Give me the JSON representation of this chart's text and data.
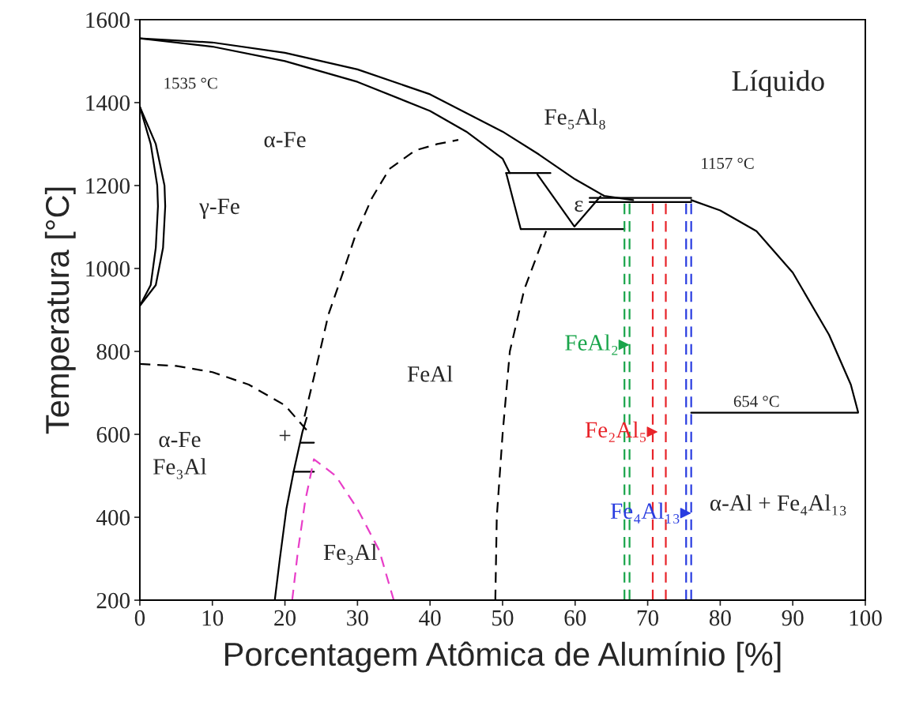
{
  "chart_data": {
    "type": "line",
    "xlabel": "Porcentagem Atômica de Alumínio [%]",
    "ylabel": "Temperatura [°C]",
    "xlim": [
      0,
      100
    ],
    "ylim": [
      200,
      1600
    ],
    "xticks": [
      0,
      10,
      20,
      30,
      40,
      50,
      60,
      70,
      80,
      90,
      100
    ],
    "yticks": [
      200,
      400,
      600,
      800,
      1000,
      1200,
      1400,
      1600
    ],
    "grid": false,
    "legend": "right",
    "marker": "none",
    "series": [
      {
        "color": "#000000",
        "line_style": "solid",
        "x": [
          0,
          10,
          20,
          30,
          40,
          50,
          55,
          60,
          64,
          68
        ],
        "values": [
          1555,
          1545,
          1520,
          1480,
          1420,
          1330,
          1275,
          1215,
          1175,
          1165
        ]
      },
      {
        "color": "#000000",
        "line_style": "solid",
        "x": [
          0,
          10,
          20,
          30,
          40,
          45,
          50,
          51
        ],
        "values": [
          1555,
          1535,
          1500,
          1450,
          1380,
          1330,
          1265,
          1230
        ]
      },
      {
        "color": "#000000",
        "line_style": "solid",
        "x": [
          50.5,
          56.6
        ],
        "values": [
          1230,
          1230
        ]
      },
      {
        "color": "#000000",
        "line_style": "solid",
        "x": [
          50.5,
          52.5
        ],
        "values": [
          1230,
          1095
        ]
      },
      {
        "color": "#000000",
        "line_style": "solid",
        "x": [
          52.5,
          66.8
        ],
        "values": [
          1095,
          1095
        ]
      },
      {
        "color": "#000000",
        "line_style": "solid",
        "x": [
          54.8,
          59.9,
          63.5
        ],
        "values": [
          1227,
          1101,
          1174
        ]
      },
      {
        "color": "#000000",
        "line_style": "solid",
        "x": [
          62,
          76
        ],
        "values": [
          1170,
          1170
        ]
      },
      {
        "color": "#000000",
        "line_style": "solid",
        "x": [
          62,
          76
        ],
        "values": [
          1160,
          1160
        ]
      },
      {
        "color": "#000000",
        "line_style": "solid",
        "x": [
          76,
          80,
          85,
          90,
          95,
          98,
          99
        ],
        "values": [
          1165,
          1140,
          1090,
          990,
          840,
          720,
          654
        ]
      },
      {
        "color": "#000000",
        "line_style": "solid",
        "x": [
          76,
          99
        ],
        "values": [
          652,
          652
        ]
      },
      {
        "color": "#000000",
        "line_style": "solid",
        "x": [
          0,
          2.2,
          3.4,
          3.5,
          3.2,
          2.2,
          0
        ],
        "values": [
          1390,
          1300,
          1200,
          1150,
          1050,
          960,
          910
        ]
      },
      {
        "color": "#000000",
        "line_style": "solid",
        "x": [
          0,
          1.5,
          2.4,
          2.5,
          2.2,
          1.5,
          0
        ],
        "values": [
          1390,
          1300,
          1200,
          1150,
          1050,
          960,
          910
        ]
      },
      {
        "color": "#000000",
        "line_style": "dashed",
        "x": [
          0,
          5,
          10,
          15,
          20,
          23
        ],
        "values": [
          770,
          765,
          750,
          720,
          670,
          610
        ]
      },
      {
        "color": "#000000",
        "line_style": "dashed",
        "x": [
          22.7,
          24.3,
          26,
          28,
          29.7,
          32,
          34.4,
          38,
          41,
          43.9
        ],
        "values": [
          643,
          760,
          889,
          990,
          1079,
          1170,
          1240,
          1285,
          1300,
          1310
        ]
      },
      {
        "color": "#000000",
        "line_style": "solid",
        "x": [
          18.6,
          19.3,
          20.2,
          21.2,
          22.4,
          23
        ],
        "values": [
          200,
          300,
          420,
          510,
          605,
          640
        ]
      },
      {
        "color": "#000000",
        "line_style": "solid",
        "x": [
          21.2,
          24
        ],
        "values": [
          510,
          510
        ]
      },
      {
        "color": "#000000",
        "line_style": "solid",
        "x": [
          22.2,
          24
        ],
        "values": [
          580,
          580
        ]
      },
      {
        "color": "#e83ec8",
        "line_style": "dashed",
        "x": [
          21,
          21.8,
          22.8,
          24,
          27,
          30,
          33,
          35
        ],
        "values": [
          200,
          320,
          440,
          540,
          500,
          420,
          320,
          200
        ]
      },
      {
        "color": "#000000",
        "line_style": "dashed",
        "x": [
          49,
          49.2,
          50,
          51,
          53,
          56
        ],
        "values": [
          200,
          400,
          600,
          800,
          950,
          1090
        ]
      },
      {
        "name": "FeAl₂",
        "color": "#1aa54b",
        "line_style": "dashed",
        "x": [
          66.8,
          66.8
        ],
        "values": [
          200,
          1160
        ]
      },
      {
        "color": "#1aa54b",
        "line_style": "dashed",
        "x": [
          67.5,
          67.5
        ],
        "values": [
          200,
          1160
        ]
      },
      {
        "name": "Fe₂Al₅",
        "color": "#e8242a",
        "line_style": "dashed",
        "x": [
          70.7,
          70.7
        ],
        "values": [
          200,
          1165
        ]
      },
      {
        "color": "#e8242a",
        "line_style": "dashed",
        "x": [
          72.5,
          72.5
        ],
        "values": [
          200,
          1165
        ]
      },
      {
        "name": "Fe₄Al₁₃",
        "color": "#2a3de0",
        "line_style": "dashed",
        "x": [
          75.3,
          75.3
        ],
        "values": [
          200,
          1160
        ]
      },
      {
        "color": "#2a3de0",
        "line_style": "dashed",
        "x": [
          76,
          76
        ],
        "values": [
          200,
          1160
        ]
      }
    ],
    "annotations": [
      "Líquido",
      "1535 °C",
      "α-Fe",
      "Fe₅Al₈",
      "1157 °C",
      "ε",
      "γ-Fe",
      "FeAl",
      "654 °C",
      "α-Fe\nFe₃Al",
      "+",
      "α-Al + Fe₄Al₁₃",
      "Fe₃Al"
    ]
  }
}
